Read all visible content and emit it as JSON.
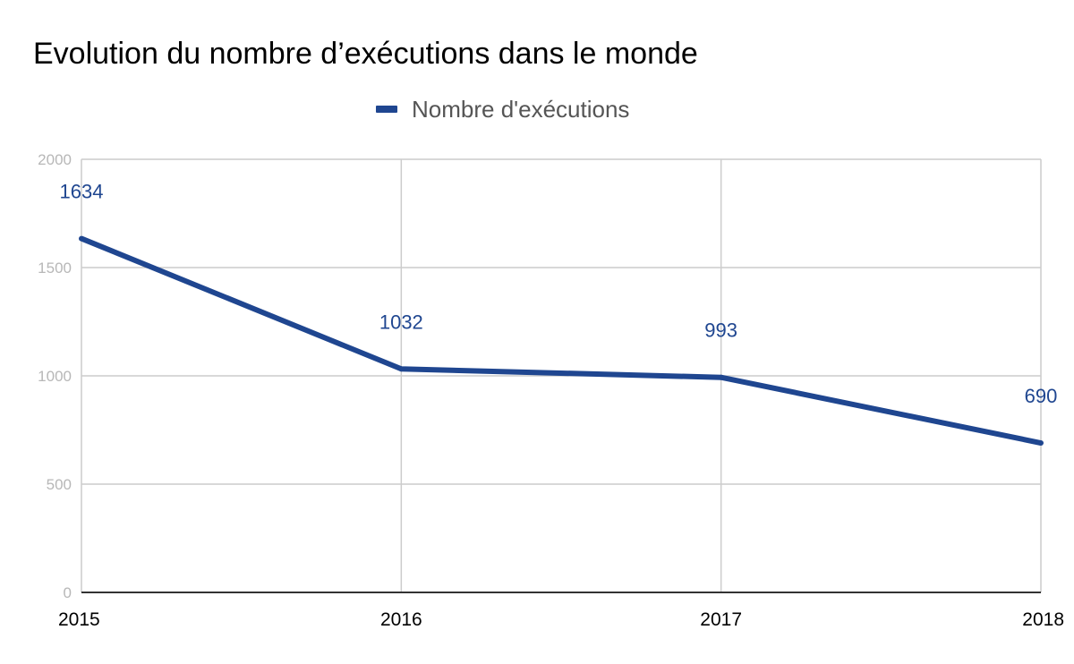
{
  "chart_data": {
    "type": "line",
    "title": "Evolution du nombre d’exécutions dans le monde",
    "x": [
      "2015",
      "2016",
      "2017",
      "2018"
    ],
    "series": [
      {
        "name": "Nombre d'exécutions",
        "values": [
          1634,
          1032,
          993,
          690
        ],
        "data_labels": [
          "1634",
          "1032",
          "993",
          "690"
        ],
        "color": "#1f4690"
      }
    ],
    "xlabel": "",
    "ylabel": "",
    "ylim": [
      0,
      2000
    ],
    "y_ticks": [
      0,
      500,
      1000,
      1500,
      2000
    ],
    "y_tick_labels": [
      "0",
      "500",
      "1000",
      "1500",
      "2000"
    ],
    "grid": true,
    "legend_position": "top-center",
    "colors": {
      "line": "#1f4690",
      "grid": "#cccccc",
      "axis": "#333333",
      "y_tick_text": "#b7b7b7"
    }
  }
}
